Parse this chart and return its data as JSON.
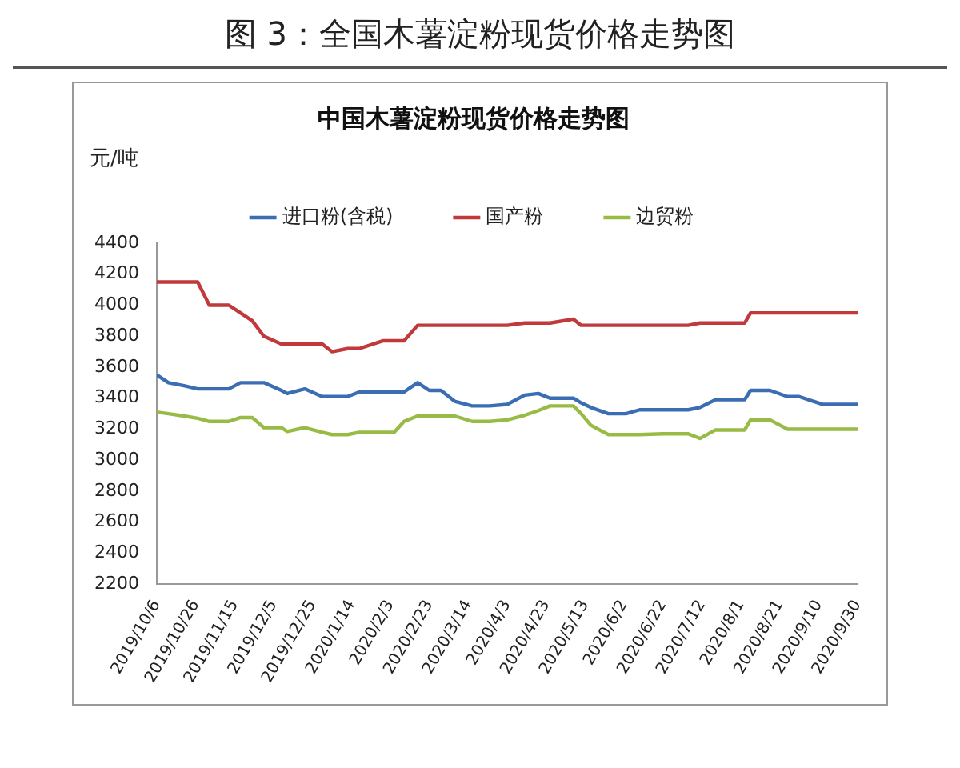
{
  "chart_data": {
    "type": "line",
    "title": "图 3：全国木薯淀粉现货价格走势图",
    "subtitle": "中国木薯淀粉现货价格走势图",
    "ylabel": "元/吨",
    "x": [
      "2019-10-06",
      "2019-10-12",
      "2019-10-20",
      "2019-10-27",
      "2019-11-02",
      "2019-11-12",
      "2019-11-18",
      "2019-11-24",
      "2019-11-30",
      "2019-12-09",
      "2019-12-12",
      "2019-12-21",
      "2019-12-30",
      "2020-01-04",
      "2020-01-12",
      "2020-01-18",
      "2020-01-30",
      "2020-02-05",
      "2020-02-10",
      "2020-02-17",
      "2020-02-23",
      "2020-02-29",
      "2020-03-07",
      "2020-03-16",
      "2020-03-25",
      "2020-04-03",
      "2020-04-12",
      "2020-04-19",
      "2020-04-25",
      "2020-05-07",
      "2020-05-11",
      "2020-05-16",
      "2020-05-25",
      "2020-06-03",
      "2020-06-10",
      "2020-06-22",
      "2020-07-05",
      "2020-07-11",
      "2020-07-19",
      "2020-08-03",
      "2020-08-06",
      "2020-08-16",
      "2020-08-25",
      "2020-08-31",
      "2020-09-12",
      "2020-09-30"
    ],
    "series": [
      {
        "name": "进口粉(含税)",
        "color": "#3b6db3",
        "values": [
          3550,
          3500,
          3480,
          3460,
          3460,
          3460,
          3500,
          3500,
          3500,
          3450,
          3430,
          3460,
          3410,
          3410,
          3410,
          3440,
          3440,
          3440,
          3440,
          3500,
          3450,
          3450,
          3380,
          3350,
          3350,
          3360,
          3420,
          3430,
          3400,
          3400,
          3370,
          3340,
          3300,
          3300,
          3325,
          3325,
          3325,
          3340,
          3390,
          3390,
          3450,
          3450,
          3410,
          3410,
          3360,
          3360
        ]
      },
      {
        "name": "国产粉",
        "color": "#c0393b",
        "values": [
          4150,
          4150,
          4150,
          4150,
          4000,
          4000,
          3950,
          3900,
          3800,
          3750,
          3750,
          3750,
          3750,
          3700,
          3720,
          3720,
          3770,
          3770,
          3770,
          3870,
          3870,
          3870,
          3870,
          3870,
          3870,
          3870,
          3885,
          3885,
          3885,
          3910,
          3870,
          3870,
          3870,
          3870,
          3870,
          3870,
          3870,
          3885,
          3885,
          3885,
          3950,
          3950,
          3950,
          3950,
          3950,
          3950
        ]
      },
      {
        "name": "边贸粉",
        "color": "#98bb45",
        "values": [
          3310,
          3300,
          3285,
          3270,
          3250,
          3250,
          3275,
          3275,
          3210,
          3210,
          3185,
          3210,
          3180,
          3165,
          3165,
          3180,
          3180,
          3180,
          3250,
          3285,
          3285,
          3285,
          3285,
          3250,
          3250,
          3260,
          3290,
          3320,
          3350,
          3350,
          3300,
          3225,
          3165,
          3165,
          3165,
          3170,
          3170,
          3140,
          3195,
          3195,
          3260,
          3260,
          3200,
          3200,
          3200,
          3200
        ]
      }
    ],
    "xlim": [
      "2019-10-06",
      "2020-09-30"
    ],
    "xticks": [
      {
        "value": "2019-10-06",
        "label": "2019/10/6"
      },
      {
        "value": "2019-10-26",
        "label": "2019/10/26"
      },
      {
        "value": "2019-11-15",
        "label": "2019/11/15"
      },
      {
        "value": "2019-12-05",
        "label": "2019/12/5"
      },
      {
        "value": "2019-12-25",
        "label": "2019/12/25"
      },
      {
        "value": "2020-01-14",
        "label": "2020/1/14"
      },
      {
        "value": "2020-02-03",
        "label": "2020/2/3"
      },
      {
        "value": "2020-02-23",
        "label": "2020/2/23"
      },
      {
        "value": "2020-03-14",
        "label": "2020/3/14"
      },
      {
        "value": "2020-04-03",
        "label": "2020/4/3"
      },
      {
        "value": "2020-04-23",
        "label": "2020/4/23"
      },
      {
        "value": "2020-05-13",
        "label": "2020/5/13"
      },
      {
        "value": "2020-06-02",
        "label": "2020/6/2"
      },
      {
        "value": "2020-06-22",
        "label": "2020/6/22"
      },
      {
        "value": "2020-07-12",
        "label": "2020/7/12"
      },
      {
        "value": "2020-08-01",
        "label": "2020/8/1"
      },
      {
        "value": "2020-08-21",
        "label": "2020/8/21"
      },
      {
        "value": "2020-09-10",
        "label": "2020/9/10"
      },
      {
        "value": "2020-09-30",
        "label": "2020/9/30"
      }
    ],
    "ylim": [
      2200,
      4400
    ],
    "yticks": [
      2200,
      2400,
      2600,
      2800,
      3000,
      3200,
      3400,
      3600,
      3800,
      4000,
      4200,
      4400
    ],
    "grid": false,
    "legend": "top",
    "marker": "none",
    "line_style": "solid"
  }
}
